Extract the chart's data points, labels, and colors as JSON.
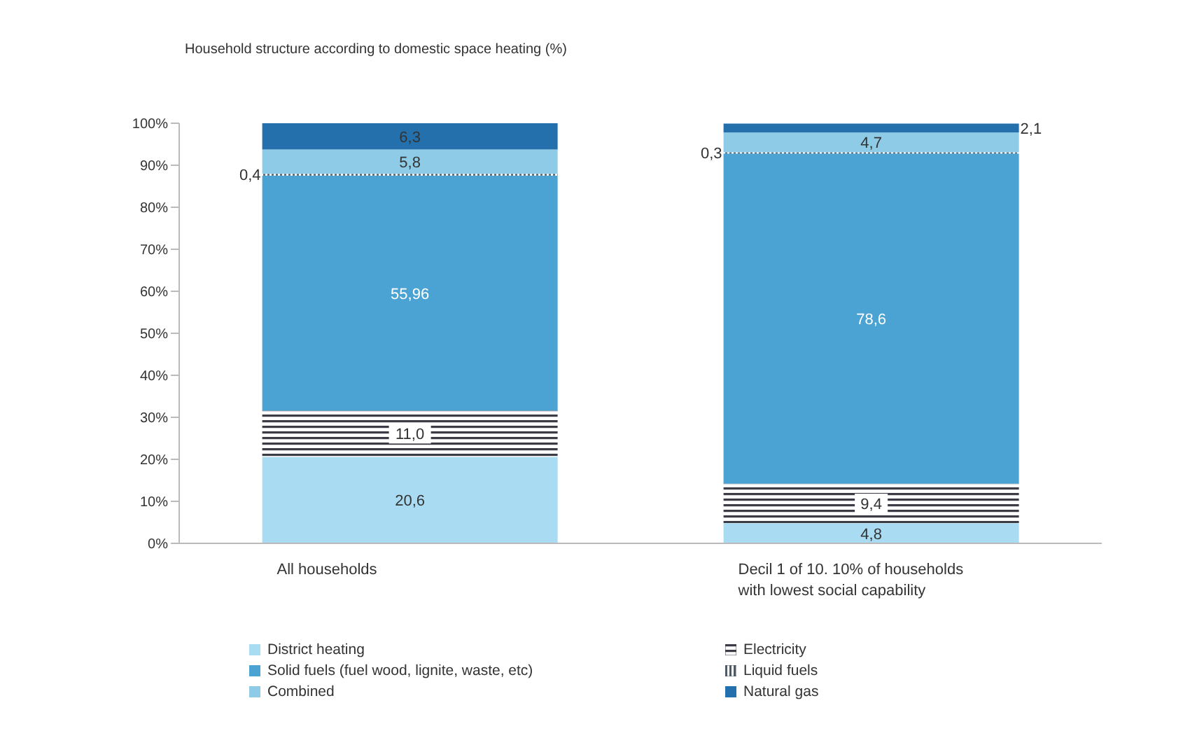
{
  "chart_data": {
    "type": "bar",
    "title": "Household structure according to domestic space heating (%)",
    "stacked": true,
    "categories": [
      "All households",
      "Decil 1 of 10. 10% of households with lowest social capability"
    ],
    "series": [
      {
        "name": "District heating",
        "color": "#a9dcf2",
        "values": [
          20.6,
          4.8
        ],
        "value_labels": [
          "20,6",
          "4,8"
        ]
      },
      {
        "name": "Electricity",
        "color": "#3c3c46",
        "values": [
          11.0,
          9.4
        ],
        "value_labels": [
          "11,0",
          "9,4"
        ]
      },
      {
        "name": "Solid fuels (fuel wood, lignite, waste, etc)",
        "color": "#4aa3d3",
        "values": [
          55.96,
          78.6
        ],
        "value_labels": [
          "55,96",
          "78,6"
        ]
      },
      {
        "name": "Liquid fuels",
        "color": "#505a64",
        "values": [
          0.4,
          0.3
        ],
        "value_labels": [
          "0,4",
          "0,3"
        ]
      },
      {
        "name": "Combined",
        "color": "#8ecbe6",
        "values": [
          5.8,
          4.7
        ],
        "value_labels": [
          "5,8",
          "4,7"
        ]
      },
      {
        "name": "Natural gas",
        "color": "#2370ad",
        "values": [
          6.3,
          2.1
        ],
        "value_labels": [
          "6,3",
          "2,1"
        ]
      }
    ],
    "ylim": [
      0,
      100
    ],
    "yticks": [
      {
        "value": 0,
        "label": "0%"
      },
      {
        "value": 10,
        "label": "10%"
      },
      {
        "value": 20,
        "label": "20%"
      },
      {
        "value": 30,
        "label": "30%"
      },
      {
        "value": 40,
        "label": "40%"
      },
      {
        "value": 50,
        "label": "50%"
      },
      {
        "value": 60,
        "label": "60%"
      },
      {
        "value": 70,
        "label": "70%"
      },
      {
        "value": 80,
        "label": "80%"
      },
      {
        "value": 90,
        "label": "90%"
      },
      {
        "value": 100,
        "label": "100%"
      }
    ],
    "legend": "bottom",
    "grid": false
  }
}
